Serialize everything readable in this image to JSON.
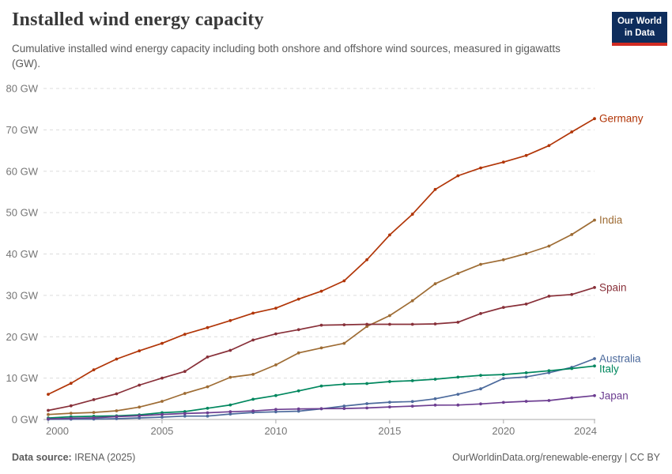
{
  "header": {
    "title": "Installed wind energy capacity",
    "subtitle": "Cumulative installed wind energy capacity including both onshore and offshore wind sources, measured in gigawatts (GW).",
    "logo": {
      "line1": "Our World",
      "line2": "in Data",
      "bg_color": "#0E2D5C",
      "stripe_color": "#D12B22"
    }
  },
  "footer": {
    "source_label": "Data source:",
    "source_value": "IRENA (2025)",
    "credit": "OurWorldinData.org/renewable-energy | CC BY"
  },
  "chart_data": {
    "type": "line",
    "title": "Installed wind energy capacity",
    "xlabel": "",
    "ylabel": "GW",
    "ylim": [
      0,
      80
    ],
    "grid": "horizontal-dashed",
    "legend_position": "right-end-labels",
    "ytick_values": [
      0,
      10,
      20,
      30,
      40,
      50,
      60,
      70,
      80
    ],
    "ytick_labels": [
      "0 GW",
      "10 GW",
      "20 GW",
      "30 GW",
      "40 GW",
      "50 GW",
      "60 GW",
      "70 GW",
      "80 GW"
    ],
    "xtick_values": [
      2000,
      2005,
      2010,
      2015,
      2020,
      2024
    ],
    "xtick_labels": [
      "2000",
      "2005",
      "2010",
      "2015",
      "2020",
      "2024"
    ],
    "x": [
      2000,
      2001,
      2002,
      2003,
      2004,
      2005,
      2006,
      2007,
      2008,
      2009,
      2010,
      2011,
      2012,
      2013,
      2014,
      2015,
      2016,
      2017,
      2018,
      2019,
      2020,
      2021,
      2022,
      2023,
      2024
    ],
    "series": [
      {
        "name": "Germany",
        "color": "#B13507",
        "values": [
          6.1,
          8.75,
          12.0,
          14.6,
          16.6,
          18.4,
          20.6,
          22.2,
          23.9,
          25.7,
          26.9,
          29.1,
          31.0,
          33.5,
          38.6,
          44.6,
          49.6,
          55.6,
          58.9,
          60.8,
          62.2,
          63.8,
          66.2,
          69.5,
          72.7
        ]
      },
      {
        "name": "India",
        "color": "#9E6C34",
        "values": [
          1.2,
          1.5,
          1.7,
          2.1,
          3.0,
          4.4,
          6.3,
          7.9,
          10.2,
          10.9,
          13.2,
          16.1,
          17.3,
          18.4,
          22.5,
          25.1,
          28.7,
          32.8,
          35.3,
          37.5,
          38.6,
          40.1,
          41.9,
          44.7,
          48.2
        ]
      },
      {
        "name": "Spain",
        "color": "#883039",
        "values": [
          2.2,
          3.3,
          4.8,
          6.2,
          8.3,
          10.0,
          11.6,
          15.1,
          16.7,
          19.2,
          20.7,
          21.7,
          22.8,
          22.9,
          23.0,
          23.0,
          23.0,
          23.1,
          23.5,
          25.6,
          27.1,
          27.9,
          29.8,
          30.2,
          31.9
        ]
      },
      {
        "name": "Australia",
        "color": "#4C6A9C",
        "values": [
          0.03,
          0.07,
          0.1,
          0.2,
          0.38,
          0.58,
          0.82,
          0.82,
          1.31,
          1.7,
          1.86,
          2.0,
          2.58,
          3.24,
          3.81,
          4.19,
          4.33,
          5.0,
          6.1,
          7.4,
          9.9,
          10.3,
          11.3,
          12.6,
          14.7
        ]
      },
      {
        "name": "Italy",
        "color": "#00875E",
        "values": [
          0.36,
          0.66,
          0.78,
          0.87,
          1.13,
          1.64,
          1.9,
          2.71,
          3.52,
          4.88,
          5.79,
          6.92,
          8.1,
          8.54,
          8.68,
          9.16,
          9.38,
          9.74,
          10.23,
          10.68,
          10.87,
          11.28,
          11.78,
          12.31,
          12.92
        ]
      },
      {
        "name": "Japan",
        "color": "#6D3E91",
        "values": [
          0.14,
          0.28,
          0.41,
          0.68,
          0.9,
          1.23,
          1.46,
          1.63,
          1.88,
          2.06,
          2.43,
          2.54,
          2.61,
          2.65,
          2.79,
          3.04,
          3.23,
          3.48,
          3.5,
          3.76,
          4.12,
          4.39,
          4.58,
          5.23,
          5.77
        ]
      }
    ]
  }
}
